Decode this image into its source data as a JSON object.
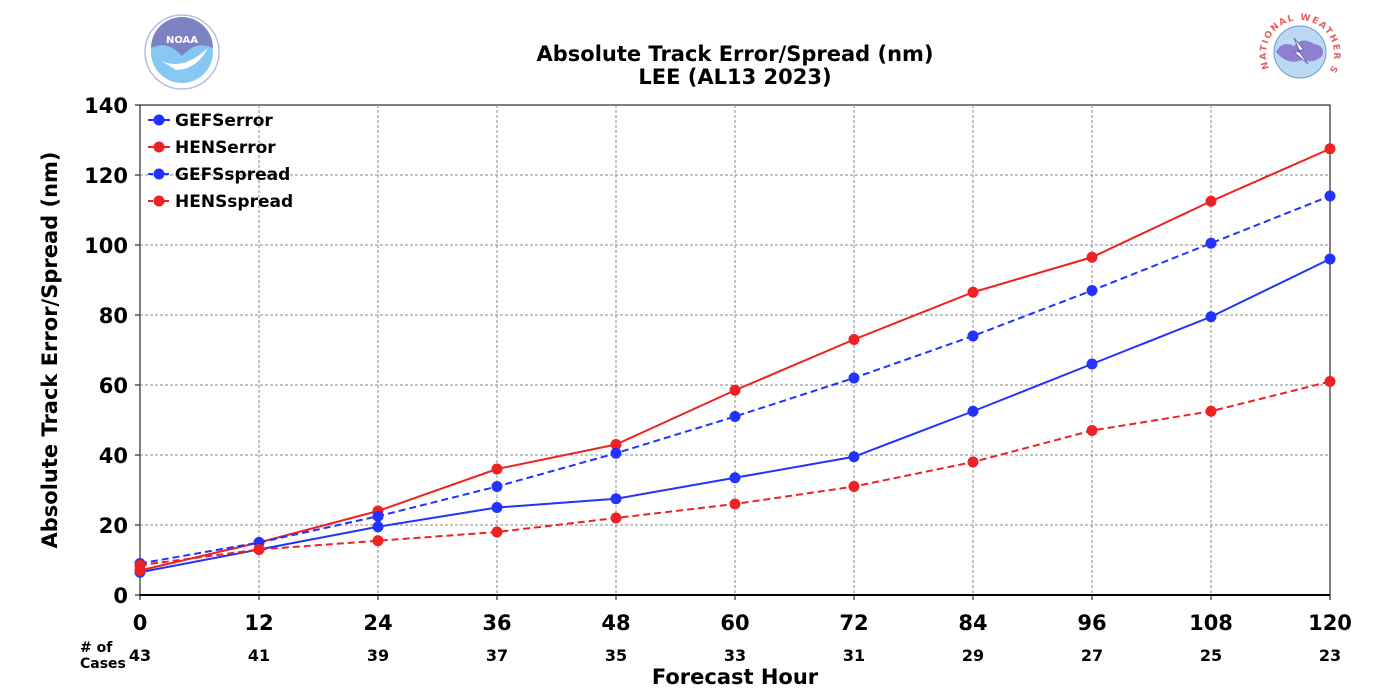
{
  "chart_data": {
    "type": "line",
    "title": "Absolute Track Error/Spread (nm)",
    "subtitle": "LEE (AL13 2023)",
    "xlabel": "Forecast Hour",
    "ylabel": "Absolute Track Error/Spread (nm)",
    "x": [
      0,
      12,
      24,
      36,
      48,
      60,
      72,
      84,
      96,
      108,
      120
    ],
    "xlim": [
      0,
      120
    ],
    "ylim": [
      0,
      140
    ],
    "yticks": [
      0,
      20,
      40,
      60,
      80,
      100,
      120,
      140
    ],
    "grid": true,
    "legend_position": "top-left",
    "series": [
      {
        "name": "GEFSerror",
        "color": "#2233ff",
        "dash": "solid",
        "values": [
          6.5,
          13,
          19.5,
          25,
          27.5,
          33.5,
          39.5,
          52.5,
          66,
          79.5,
          96
        ]
      },
      {
        "name": "HENSerror",
        "color": "#ee2222",
        "dash": "solid",
        "values": [
          7,
          15,
          24,
          36,
          43,
          58.5,
          73,
          86.5,
          96.5,
          112.5,
          127.5
        ]
      },
      {
        "name": "GEFSspread",
        "color": "#2233ff",
        "dash": "dashed",
        "values": [
          9,
          15,
          22.5,
          31,
          40.5,
          51,
          62,
          74,
          87,
          100.5,
          114
        ]
      },
      {
        "name": "HENSspread",
        "color": "#ee2222",
        "dash": "dashed",
        "values": [
          8.5,
          13,
          15.5,
          18,
          22,
          26,
          31,
          38,
          47,
          52.5,
          61
        ]
      }
    ],
    "cases_label": "# of\nCases",
    "cases": [
      43,
      41,
      39,
      37,
      35,
      33,
      31,
      29,
      27,
      25,
      23
    ]
  },
  "logos": {
    "left": {
      "icon": "noaa-logo",
      "text": "NOAA"
    },
    "right": {
      "icon": "nws-logo",
      "text": "NATIONAL WEATHER SERVICE"
    }
  }
}
